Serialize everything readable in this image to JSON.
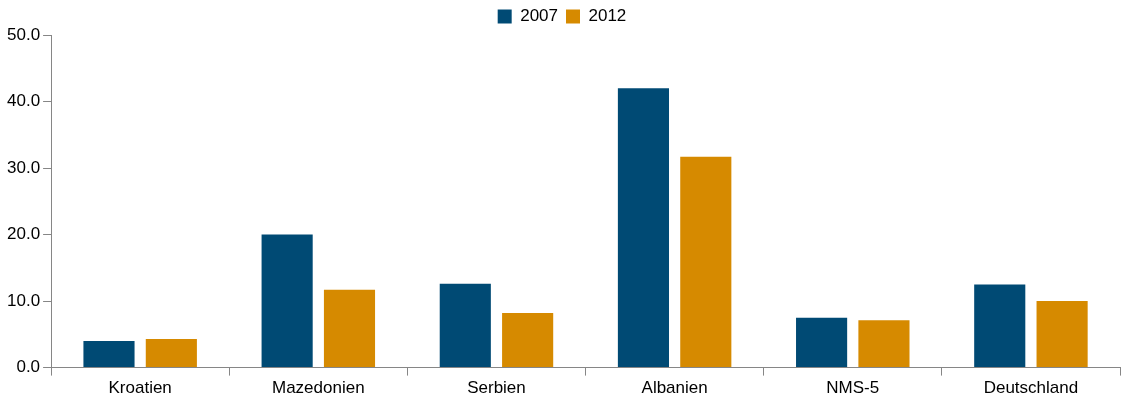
{
  "chart_data": {
    "type": "bar",
    "categories": [
      "Kroatien",
      "Mazedonien",
      "Serbien",
      "Albanien",
      "NMS-5",
      "Deutschland"
    ],
    "series": [
      {
        "name": "2007",
        "color": "#004a74",
        "values": [
          4.0,
          20.0,
          12.6,
          42.0,
          7.5,
          12.5
        ]
      },
      {
        "name": "2012",
        "color": "#d68a00",
        "values": [
          4.3,
          11.7,
          8.2,
          31.7,
          7.1,
          10.0
        ]
      }
    ],
    "ylim": [
      0,
      50
    ],
    "yticks": [
      {
        "value": 0,
        "label": "0.0"
      },
      {
        "value": 10,
        "label": "10.0"
      },
      {
        "value": 20,
        "label": "20.0"
      },
      {
        "value": 30,
        "label": "30.0"
      },
      {
        "value": 40,
        "label": "40.0"
      },
      {
        "value": 50,
        "label": "50.0"
      }
    ],
    "grid": false,
    "legend": "top"
  }
}
